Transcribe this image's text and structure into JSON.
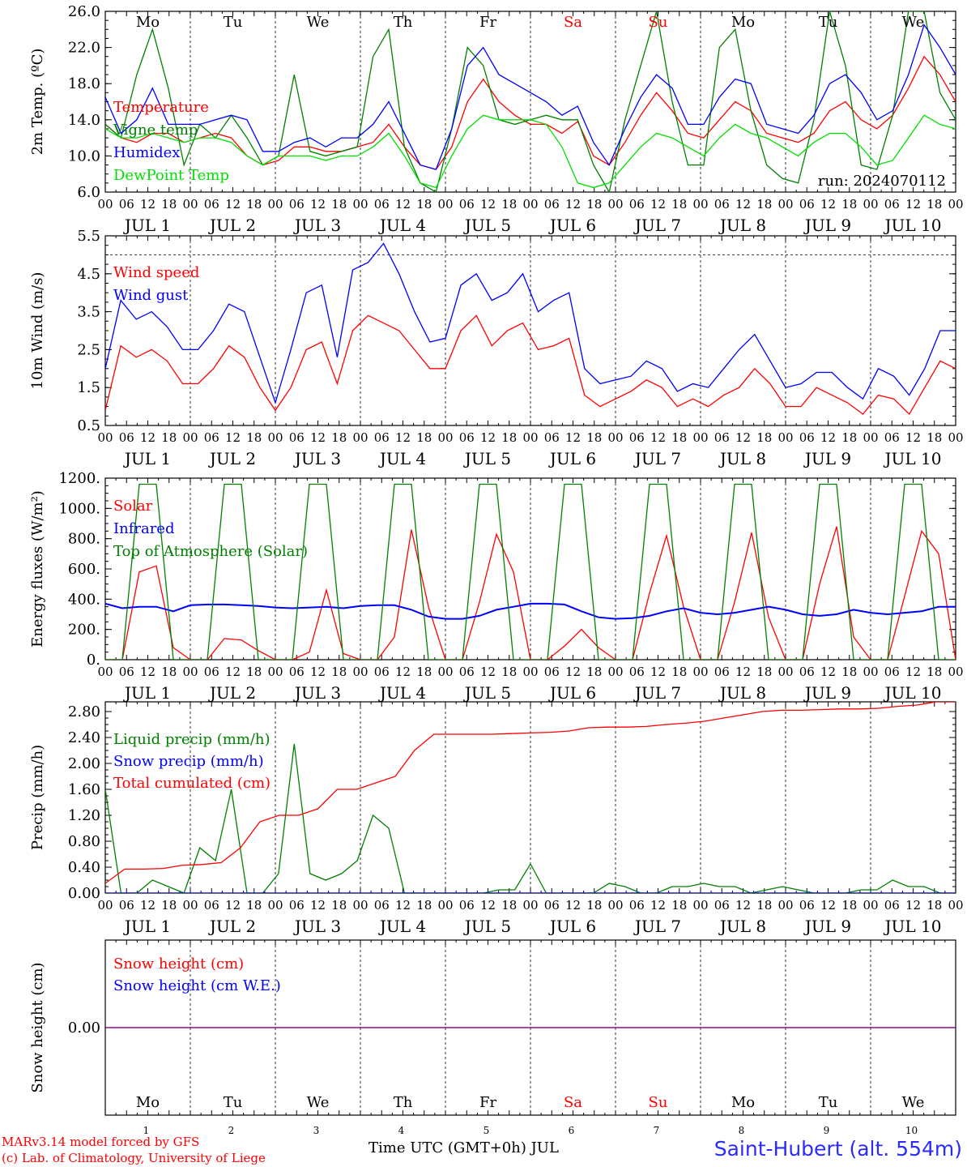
{
  "run_label": "run: 2024070112",
  "footer": {
    "model": "MARv3.14 model forced by GFS",
    "copyright": "(c) Lab. of Climatology, University of Liege",
    "time_axis": "Time UTC (GMT+0h) JUL",
    "station": "Saint-Hubert (alt. 554m)"
  },
  "days": [
    {
      "dow": "Mo",
      "date": "JUL  1",
      "num": "1",
      "weekend": false
    },
    {
      "dow": "Tu",
      "date": "JUL  2",
      "num": "2",
      "weekend": false
    },
    {
      "dow": "We",
      "date": "JUL  3",
      "num": "3",
      "weekend": false
    },
    {
      "dow": "Th",
      "date": "JUL  4",
      "num": "4",
      "weekend": false
    },
    {
      "dow": "Fr",
      "date": "JUL  5",
      "num": "5",
      "weekend": false
    },
    {
      "dow": "Sa",
      "date": "JUL  6",
      "num": "6",
      "weekend": true
    },
    {
      "dow": "Su",
      "date": "JUL  7",
      "num": "7",
      "weekend": true
    },
    {
      "dow": "Mo",
      "date": "JUL  8",
      "num": "8",
      "weekend": false
    },
    {
      "dow": "Tu",
      "date": "JUL  9",
      "num": "9",
      "weekend": false
    },
    {
      "dow": "We",
      "date": "JUL 10",
      "num": "10",
      "weekend": false
    }
  ],
  "hour_labels": [
    "00",
    "06",
    "12",
    "18"
  ],
  "colors": {
    "red": "#ff0000",
    "green": "#008000",
    "blue": "#0000ff",
    "lightgreen": "#00e000",
    "purple": "#7f007f",
    "weekend": "#ff0000"
  },
  "chart_data": [
    {
      "id": "temperature",
      "type": "line",
      "ylabel": "2m Temp. (ºC)",
      "yticks": [
        "6.0",
        "10.0",
        "14.0",
        "18.0",
        "22.0",
        "26.0"
      ],
      "ylim": [
        6,
        26
      ],
      "x_unit": "hours since JUL 1 00 UTC",
      "x_step": 6,
      "series": [
        {
          "name": "Temperature",
          "color": "red",
          "values": [
            13.5,
            12,
            11.5,
            12.5,
            12.5,
            11.5,
            12,
            12.5,
            12,
            10,
            9,
            9.5,
            11,
            11,
            10.5,
            10.5,
            11,
            11.5,
            13.5,
            11,
            9,
            8.5,
            11,
            16,
            18.5,
            16,
            14.5,
            13.5,
            13.5,
            12.5,
            13.8,
            10,
            9,
            11.5,
            14.5,
            17,
            15,
            12.5,
            12,
            14,
            16,
            15,
            12.5,
            12,
            11.5,
            12.5,
            15,
            16,
            14,
            13,
            14.5,
            17.5,
            21,
            19,
            16
          ]
        },
        {
          "name": "Vigne temp",
          "color": "green",
          "values": [
            13.5,
            12,
            19,
            24,
            17.5,
            9,
            13.5,
            12,
            14.5,
            12,
            9,
            10,
            19,
            10.5,
            10,
            10.5,
            11,
            21,
            24,
            11,
            7,
            6,
            13,
            22,
            20,
            14,
            13.5,
            14,
            14.5,
            14,
            14,
            9,
            6,
            14,
            20,
            26,
            16,
            9,
            9,
            22,
            24,
            15,
            9,
            7.5,
            7,
            14,
            26,
            20,
            9,
            8.5,
            14.5,
            26,
            26,
            17,
            14
          ]
        },
        {
          "name": "Humidex",
          "color": "blue",
          "values": [
            16.5,
            12.5,
            14,
            17.5,
            13.5,
            13.5,
            13.5,
            14,
            14.5,
            14,
            10.5,
            10.5,
            11.5,
            12,
            11,
            12,
            12,
            13.5,
            16,
            12.5,
            9,
            8.5,
            13,
            20,
            22,
            19,
            18,
            17,
            16,
            14.5,
            15.5,
            11.5,
            9,
            13,
            16.5,
            19,
            17.5,
            13.5,
            13.5,
            16.5,
            18.5,
            18,
            13.5,
            13,
            12.5,
            14.5,
            18,
            19,
            17,
            14,
            15,
            19,
            24.5,
            22,
            19
          ]
        },
        {
          "name": "DewPoint Temp",
          "color": "lightgreen",
          "values": [
            13,
            12,
            12,
            12.5,
            12,
            11.5,
            12,
            12,
            11.5,
            10,
            9,
            10,
            10,
            10,
            9.5,
            10,
            10,
            11,
            12.5,
            10,
            7,
            6.5,
            10,
            13,
            14.5,
            14,
            14,
            14,
            13.5,
            11,
            7,
            6.5,
            7,
            9,
            11,
            12.5,
            12,
            11,
            10,
            12,
            13.5,
            12.5,
            12,
            11,
            10,
            11.5,
            12.5,
            12.5,
            11,
            9,
            9.5,
            12,
            14.5,
            13.5,
            13
          ]
        }
      ]
    },
    {
      "id": "wind",
      "type": "line",
      "ylabel": "10m Wind (m/s)",
      "yticks": [
        "0.5",
        "1.5",
        "2.5",
        "3.5",
        "4.5",
        "5.5"
      ],
      "ylim": [
        0.5,
        5.5
      ],
      "reference_line": 5.0,
      "x_unit": "hours since JUL 1 00 UTC",
      "x_step": 6,
      "series": [
        {
          "name": "Wind speed",
          "color": "red",
          "values": [
            0.9,
            2.6,
            2.3,
            2.5,
            2.2,
            1.6,
            1.6,
            2,
            2.6,
            2.3,
            1.5,
            0.9,
            1.5,
            2.5,
            2.7,
            1.6,
            3,
            3.4,
            3.2,
            3,
            2.5,
            2,
            2,
            3,
            3.4,
            2.6,
            3,
            3.2,
            2.5,
            2.6,
            2.8,
            1.3,
            1,
            1.2,
            1.4,
            1.7,
            1.5,
            1,
            1.2,
            1,
            1.3,
            1.5,
            2,
            1.6,
            1,
            1,
            1.5,
            1.3,
            1.1,
            0.8,
            1.3,
            1.2,
            0.8,
            1.5,
            2.2,
            2
          ]
        },
        {
          "name": "Wind gust",
          "color": "blue",
          "values": [
            2,
            3.8,
            3.3,
            3.5,
            3.1,
            2.5,
            2.5,
            3,
            3.7,
            3.5,
            2.3,
            1.1,
            2.5,
            4,
            4.2,
            2.3,
            4.6,
            4.8,
            5.3,
            4.5,
            3.5,
            2.7,
            2.8,
            4.2,
            4.5,
            3.8,
            4,
            4.5,
            3.5,
            3.8,
            4,
            2,
            1.6,
            1.7,
            1.8,
            2.2,
            2,
            1.4,
            1.6,
            1.5,
            2,
            2.5,
            2.9,
            2.2,
            1.5,
            1.6,
            1.9,
            1.9,
            1.5,
            1.2,
            2,
            1.8,
            1.3,
            2,
            3,
            3
          ]
        }
      ]
    },
    {
      "id": "energy",
      "type": "line",
      "ylabel": "Energy fluxes (W/m²)",
      "yticks": [
        "0.",
        "200.",
        "400.",
        "600.",
        "800.",
        "1000.",
        "1200."
      ],
      "ylim": [
        0,
        1200
      ],
      "x_unit": "hours since JUL 1 00 UTC",
      "x_step": 6,
      "series": [
        {
          "name": "Solar",
          "color": "red",
          "values": [
            0,
            0,
            580,
            620,
            80,
            0,
            0,
            140,
            130,
            60,
            0,
            0,
            50,
            460,
            40,
            0,
            0,
            150,
            860,
            350,
            0,
            0,
            380,
            830,
            580,
            0,
            0,
            90,
            200,
            80,
            0,
            0,
            440,
            820,
            350,
            0,
            0,
            380,
            840,
            280,
            0,
            0,
            500,
            880,
            150,
            0,
            0,
            420,
            850,
            700,
            0
          ]
        },
        {
          "name": "Infrared",
          "color": "blue",
          "values": [
            370,
            340,
            350,
            350,
            320,
            360,
            365,
            365,
            360,
            355,
            345,
            340,
            345,
            350,
            340,
            355,
            360,
            360,
            330,
            285,
            270,
            270,
            290,
            330,
            350,
            370,
            370,
            365,
            320,
            280,
            270,
            275,
            290,
            320,
            340,
            310,
            300,
            310,
            330,
            350,
            330,
            300,
            290,
            300,
            330,
            310,
            300,
            310,
            320,
            350,
            350
          ]
        },
        {
          "name": "Top of Atmosphere (Solar)",
          "color": "green",
          "values": [
            0,
            0,
            1160,
            1160,
            0,
            0,
            0,
            1160,
            1160,
            0,
            0,
            0,
            1160,
            1160,
            0,
            0,
            0,
            1160,
            1160,
            0,
            0,
            0,
            1160,
            1160,
            0,
            0,
            0,
            1160,
            1160,
            0,
            0,
            0,
            1160,
            1160,
            0,
            0,
            0,
            1160,
            1160,
            0,
            0,
            0,
            1160,
            1160,
            0,
            0,
            0,
            1160,
            1160,
            0,
            0
          ]
        }
      ]
    },
    {
      "id": "precip",
      "type": "line",
      "ylabel": "Precip (mm/h)",
      "yticks": [
        "0.00",
        "0.40",
        "0.80",
        "1.20",
        "1.60",
        "2.00",
        "2.40",
        "2.80"
      ],
      "ylim": [
        0,
        2.95
      ],
      "x_unit": "hours since JUL 1 00 UTC",
      "x_step": 6,
      "series": [
        {
          "name": "Liquid precip (mm/h)",
          "color": "green",
          "values": [
            1.6,
            0,
            0,
            0.2,
            0.1,
            0,
            0.7,
            0.5,
            1.6,
            0,
            0,
            0.3,
            2.3,
            0.3,
            0.2,
            0.3,
            0.5,
            1.2,
            1,
            0,
            0,
            0,
            0,
            0,
            0,
            0.05,
            0.05,
            0.45,
            0,
            0,
            0,
            0,
            0.15,
            0.1,
            0,
            0,
            0.1,
            0.1,
            0.15,
            0.1,
            0.1,
            0,
            0.05,
            0.1,
            0.05,
            0,
            0,
            0,
            0.05,
            0.05,
            0.2,
            0.1,
            0.1,
            0,
            0
          ]
        },
        {
          "name": "Snow precip (mm/h)",
          "color": "blue",
          "values": [
            0,
            0,
            0,
            0,
            0,
            0,
            0,
            0,
            0,
            0,
            0,
            0,
            0,
            0,
            0,
            0,
            0,
            0,
            0,
            0,
            0,
            0,
            0,
            0,
            0,
            0,
            0,
            0,
            0,
            0,
            0,
            0,
            0,
            0,
            0,
            0,
            0,
            0,
            0,
            0,
            0,
            0,
            0,
            0,
            0,
            0,
            0,
            0,
            0,
            0,
            0,
            0,
            0,
            0,
            0
          ]
        },
        {
          "name": "Total cumulated (cm)",
          "color": "red",
          "values": [
            0.15,
            0.37,
            0.37,
            0.38,
            0.43,
            0.44,
            0.47,
            0.7,
            1.1,
            1.2,
            1.2,
            1.3,
            1.6,
            1.6,
            1.7,
            1.8,
            2.2,
            2.45,
            2.45,
            2.45,
            2.45,
            2.46,
            2.47,
            2.48,
            2.5,
            2.55,
            2.56,
            2.56,
            2.57,
            2.6,
            2.62,
            2.65,
            2.7,
            2.75,
            2.8,
            2.82,
            2.82,
            2.83,
            2.84,
            2.84,
            2.85,
            2.88,
            2.9,
            2.95,
            2.95
          ]
        }
      ]
    },
    {
      "id": "snow",
      "type": "line",
      "ylabel": "Snow height (cm)",
      "yticks": [
        "0.00"
      ],
      "ylim": [
        -1,
        1
      ],
      "x_unit": "hours since JUL 1 00 UTC",
      "x_step": 6,
      "series": [
        {
          "name": "Snow height (cm)",
          "color": "red",
          "values": [
            0,
            0
          ]
        },
        {
          "name": "Snow height (cm W.E.)",
          "color": "blue",
          "values": [
            0,
            0
          ]
        }
      ]
    }
  ]
}
